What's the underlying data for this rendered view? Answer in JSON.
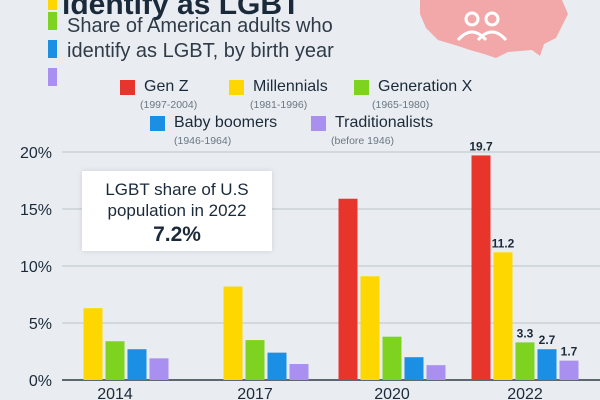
{
  "header": {
    "title": "identify as LGBT",
    "subtitle": "Share of American adults who identify as LGBT, by birth year"
  },
  "callout": {
    "text": "LGBT share of U.S population in 2022",
    "value": "7.2%"
  },
  "colors": {
    "background": "#e9edf1",
    "gen_z": "#e8352b",
    "millennials": "#ffd700",
    "gen_x": "#7ed321",
    "baby_boomers": "#1a8fe3",
    "traditionalists": "#a98ff0",
    "map": "#f2a8a8"
  },
  "legend": [
    {
      "name": "Gen Z",
      "years": "(1997-2004)"
    },
    {
      "name": "Millennials",
      "years": "(1981-1996)"
    },
    {
      "name": "Generation X",
      "years": "(1965-1980)"
    },
    {
      "name": "Baby boomers",
      "years": "(1946-1964)"
    },
    {
      "name": "Traditionalists",
      "years": "(before 1946)"
    }
  ],
  "chart_data": {
    "type": "bar",
    "title": "identify as LGBT",
    "subtitle": "Share of American adults who identify as LGBT, by birth year",
    "categories": [
      "2014",
      "2017",
      "2020",
      "2022"
    ],
    "series": [
      {
        "name": "Gen Z",
        "color": "#e8352b",
        "values": [
          null,
          null,
          15.9,
          19.7
        ]
      },
      {
        "name": "Millennials",
        "color": "#ffd700",
        "values": [
          6.3,
          8.2,
          9.1,
          11.2
        ]
      },
      {
        "name": "Generation X",
        "color": "#7ed321",
        "values": [
          3.4,
          3.5,
          3.8,
          3.3
        ]
      },
      {
        "name": "Baby boomers",
        "color": "#1a8fe3",
        "values": [
          2.7,
          2.4,
          2.0,
          2.7
        ]
      },
      {
        "name": "Traditionalists",
        "color": "#a98ff0",
        "values": [
          1.9,
          1.4,
          1.3,
          1.7
        ]
      }
    ],
    "data_labels": {
      "category": "2022",
      "labels": [
        "19.7",
        "11.2",
        "3.3",
        "2.7",
        "1.7"
      ]
    },
    "yticks": [
      "0%",
      "5%",
      "10%",
      "15%",
      "20%"
    ],
    "ylim": [
      0,
      20
    ],
    "grid": true,
    "legend_position": "top"
  }
}
